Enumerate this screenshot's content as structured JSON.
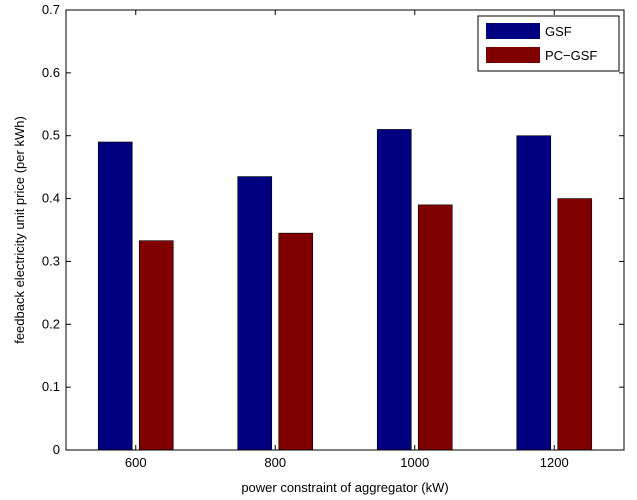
{
  "chart_data": {
    "type": "bar",
    "title": "",
    "xlabel": "power constraint of aggregator (kW)",
    "ylabel": "feedback electricity unit price (per kWh)",
    "categories": [
      "600",
      "800",
      "1000",
      "1200"
    ],
    "series": [
      {
        "name": "GSF",
        "values": [
          0.49,
          0.435,
          0.51,
          0.5
        ],
        "color": "#000080"
      },
      {
        "name": "PC−GSF",
        "values": [
          0.333,
          0.345,
          0.39,
          0.4
        ],
        "color": "#800000"
      }
    ],
    "ylim": [
      0,
      0.7
    ],
    "yticks": [
      "0",
      "0.1",
      "0.2",
      "0.3",
      "0.4",
      "0.5",
      "0.6",
      "0.7"
    ],
    "grid": false,
    "legend_position": "top-right"
  }
}
